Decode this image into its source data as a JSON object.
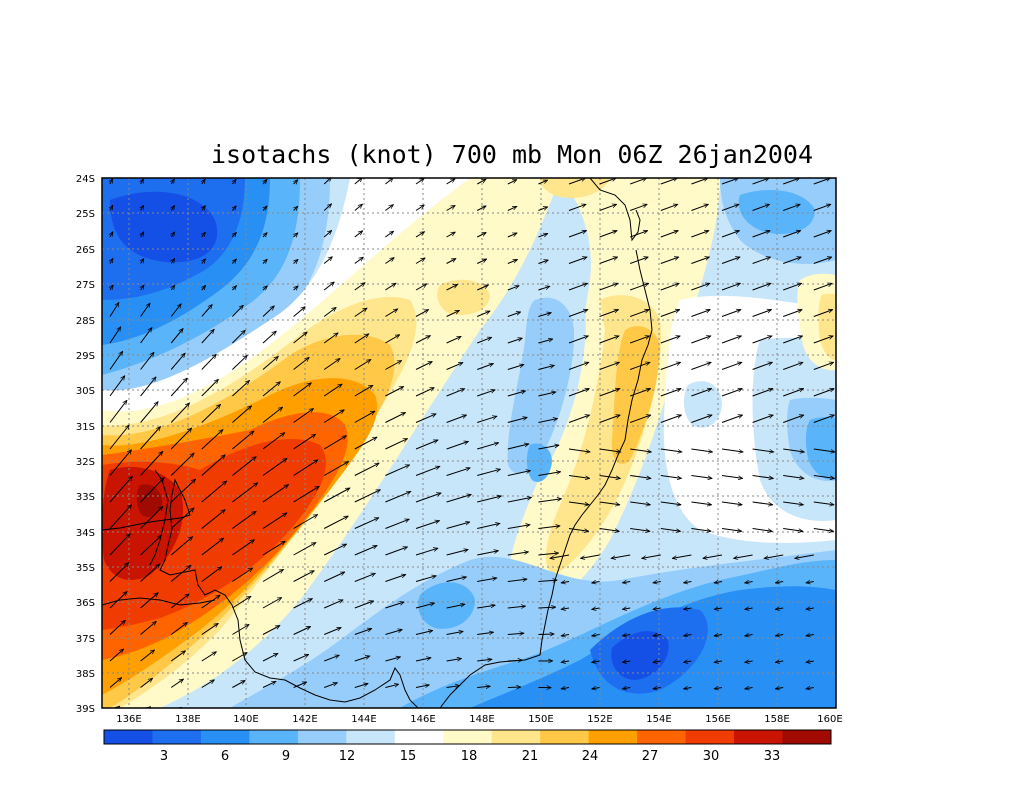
{
  "title": "isotachs (knot) 700 mb Mon 06Z 26jan2004",
  "map": {
    "lon_range": [
      135,
      160
    ],
    "lat_range": [
      -39,
      -24
    ],
    "lat_labels": [
      "24S",
      "25S",
      "26S",
      "27S",
      "28S",
      "29S",
      "30S",
      "31S",
      "32S",
      "33S",
      "34S",
      "35S",
      "36S",
      "37S",
      "38S",
      "39S"
    ],
    "lon_labels": [
      "136E",
      "138E",
      "140E",
      "142E",
      "144E",
      "146E",
      "148E",
      "150E",
      "152E",
      "154E",
      "156E",
      "158E",
      "160E"
    ],
    "field": "wind speed isotachs with wind vectors",
    "gridlines": true
  },
  "colorbar": {
    "colors": [
      "#1450e6",
      "#1e6ef0",
      "#2890f5",
      "#5ab4fa",
      "#96cdfa",
      "#c8e6fa",
      "#ffffff",
      "#fffac8",
      "#ffe68c",
      "#ffc846",
      "#ffa000",
      "#ff6400",
      "#f03c00",
      "#c81400",
      "#a00a00"
    ],
    "labels": [
      "3",
      "6",
      "9",
      "12",
      "15",
      "18",
      "21",
      "24",
      "27",
      "30",
      "33"
    ]
  }
}
